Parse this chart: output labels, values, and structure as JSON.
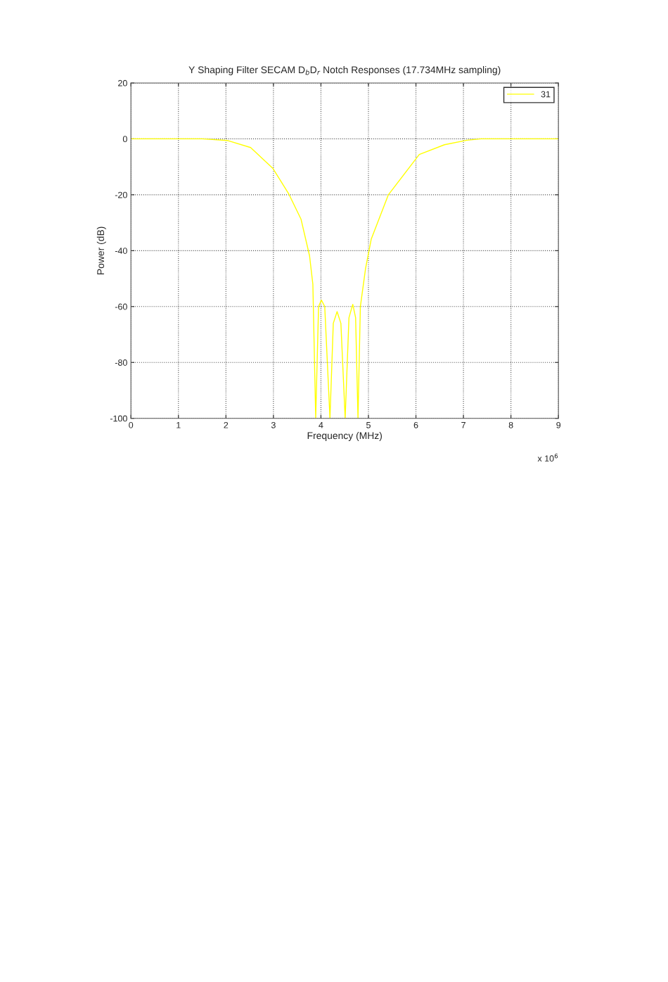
{
  "chart_data": {
    "type": "line",
    "title": "Y Shaping Filter SECAM D$_{b}$D$_{r}$ Notch Responses (17.734MHz sampling)",
    "xlabel": "Frequency (MHz)",
    "ylabel": "Power (dB)",
    "annotations": [
      "x 10$^{6}$"
    ],
    "x": [
      0,
      1,
      1.5,
      2.04,
      2.52,
      2.99,
      3.32,
      3.58,
      3.76,
      3.83,
      3.89,
      3.95,
      4.01,
      4.08,
      4.19,
      4.26,
      4.34,
      4.42,
      4.51,
      4.59,
      4.67,
      4.73,
      4.78,
      4.83,
      4.94,
      5.06,
      5.42,
      6.07,
      6.6,
      7.07,
      7.37,
      8,
      9
    ],
    "series": [
      {
        "name": "31",
        "color": "#ffff00",
        "values": [
          0,
          0,
          0,
          -0.6,
          -3.1,
          -10.6,
          -19.6,
          -28.7,
          -41.8,
          -52,
          -100,
          -60,
          -57.7,
          -60,
          -100,
          -66,
          -61.8,
          -66,
          -100,
          -64,
          -59.2,
          -64,
          -100,
          -60,
          -46.3,
          -35.8,
          -20,
          -5.6,
          -2.1,
          -0.5,
          0,
          0,
          0
        ]
      }
    ],
    "xlim": [
      0,
      9
    ],
    "xticks": [
      0,
      1,
      2,
      3,
      4,
      5,
      6,
      7,
      8,
      9
    ],
    "ylim": [
      -100,
      20
    ],
    "yticks": [
      -100,
      -80,
      -60,
      -40,
      -20,
      0,
      20
    ],
    "grid": true,
    "legend": "top right",
    "marker": "none",
    "line_style": "solid"
  }
}
